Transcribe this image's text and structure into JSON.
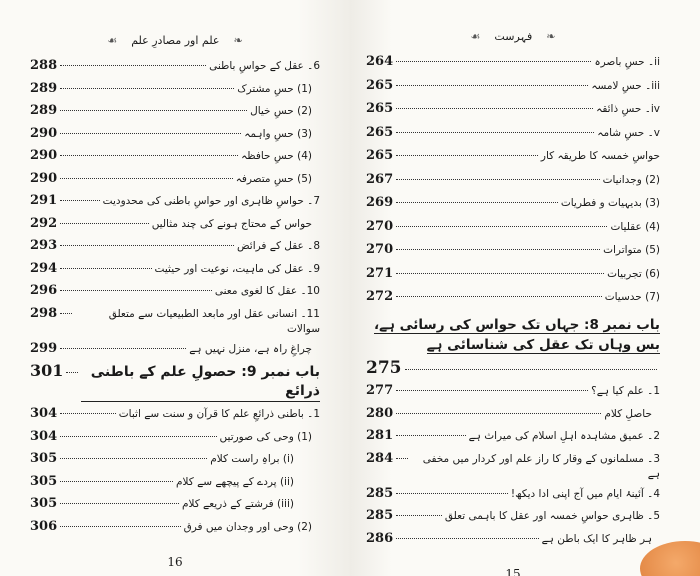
{
  "left_page": {
    "header": "علم اور مصادرِ علم",
    "page_number": "16",
    "entries": [
      {
        "text": "6۔ عقل کے حواسِ باطنی",
        "page": "288",
        "level": 1
      },
      {
        "text": "(1) حسِ مشترک",
        "page": "289",
        "level": 2
      },
      {
        "text": "(2) حسِ خیال",
        "page": "289",
        "level": 2
      },
      {
        "text": "(3) حسِ واہمہ",
        "page": "290",
        "level": 2
      },
      {
        "text": "(4) حسِ حافظہ",
        "page": "290",
        "level": 2
      },
      {
        "text": "(5) حسِ متصرفہ",
        "page": "290",
        "level": 2
      },
      {
        "text": "7۔ حواسِ ظاہری اور حواسِ باطنی کی محدودیت",
        "page": "291",
        "level": 1
      },
      {
        "text": "حواس کے محتاج ہونے کی چند مثالیں",
        "page": "292",
        "level": 2
      },
      {
        "text": "8۔ عقل کے فرائض",
        "page": "293",
        "level": 1
      },
      {
        "text": "9۔ عقل کی ماہیت، نوعیت اور حیثیت",
        "page": "294",
        "level": 1
      },
      {
        "text": "10۔ عقل کا لغوی معنی",
        "page": "296",
        "level": 1
      },
      {
        "text": "11۔ انسانی عقل اور مابعد الطبیعیات سے متعلق سوالات",
        "page": "298",
        "level": 1
      },
      {
        "text": "چراغِ راہ ہے، منزل نہیں ہے",
        "page": "299",
        "level": 2
      },
      {
        "text": "باب نمبر 9: حصولِ علم کے باطنی ذرائع",
        "page": "301",
        "level": 0
      },
      {
        "text": "1۔ باطنی ذرائعِ علم کا قرآن و سنت سے اثبات",
        "page": "304",
        "level": 1
      },
      {
        "text": "(1) وحی کی صورتیں",
        "page": "304",
        "level": 2
      },
      {
        "text": "(i) براہِ راست کلام",
        "page": "305",
        "level": 3
      },
      {
        "text": "(ii) پردے کے پیچھے سے کلام",
        "page": "305",
        "level": 3
      },
      {
        "text": "(iii) فرشتے کے ذریعے کلام",
        "page": "305",
        "level": 3
      },
      {
        "text": "(2) وحی اور وجدان میں فرق",
        "page": "306",
        "level": 2
      }
    ]
  },
  "right_page": {
    "header": "فہرست",
    "page_number": "15",
    "entries": [
      {
        "text": "ii۔ حسِ باصرہ",
        "page": "264",
        "level": 1
      },
      {
        "text": "iii۔ حسِ لامسہ",
        "page": "265",
        "level": 1
      },
      {
        "text": "iv۔ حسِ ذائقہ",
        "page": "265",
        "level": 1
      },
      {
        "text": "v۔ حسِ شامہ",
        "page": "265",
        "level": 1
      },
      {
        "text": "حواسِ خمسہ کا طریقہ کار",
        "page": "265",
        "level": 1
      },
      {
        "text": "(2) وجدانیات",
        "page": "267",
        "level": 1
      },
      {
        "text": "(3) بدیہیات و فطریات",
        "page": "269",
        "level": 1
      },
      {
        "text": "(4) عقلیات",
        "page": "270",
        "level": 1
      },
      {
        "text": "(5) متواترات",
        "page": "270",
        "level": 1
      },
      {
        "text": "(6) تجربیات",
        "page": "271",
        "level": 1
      },
      {
        "text": "(7) حدسیات",
        "page": "272",
        "level": 1
      }
    ],
    "chapter_heading": "باب نمبر 8: جہاں تک حواس کی رسائی ہے، بس وہاں تک عقل کی شناسائی ہے",
    "chapter_entries": [
      {
        "text": "",
        "page": "275",
        "level": 1
      },
      {
        "text": "1۔ علم کیا ہے؟",
        "page": "277",
        "level": 1
      },
      {
        "text": "حاصلِ کلام",
        "page": "280",
        "level": 2
      },
      {
        "text": "2۔ عمیق مشاہدہ اہلِ اسلام کی میراث ہے",
        "page": "281",
        "level": 1
      },
      {
        "text": "3۔ مسلمانوں کے وقار کا راز علم اور کردار میں مخفی ہے",
        "page": "284",
        "level": 1
      },
      {
        "text": "4۔ آئینۂ ایام میں آج اپنی ادا دیکھ!",
        "page": "285",
        "level": 1
      },
      {
        "text": "5۔ ظاہری حواسِ خمسہ اور عقل کا باہمی تعلق",
        "page": "285",
        "level": 1
      },
      {
        "text": "ہر ظاہر کا ایک باطن ہے",
        "page": "286",
        "level": 2
      }
    ]
  }
}
